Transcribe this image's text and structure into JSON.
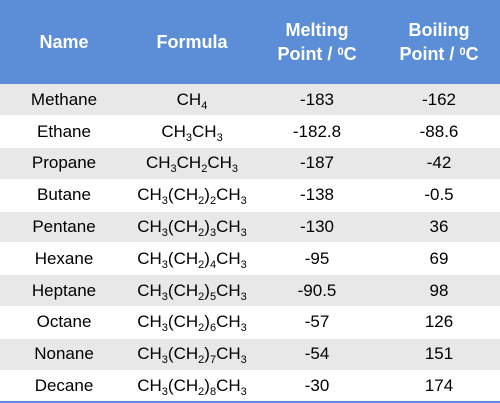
{
  "header": {
    "name": "Name",
    "formula": "Formula",
    "melting_line1": "Melting",
    "melting_line2_pre": "Point / ",
    "melting_sup": "0",
    "melting_line2_post": "C",
    "boiling_line1": "Boiling",
    "boiling_line2_pre": "Point / ",
    "boiling_sup": "0",
    "boiling_line2_post": "C"
  },
  "rows": [
    {
      "name": "Methane",
      "formula": [
        [
          "CH",
          ""
        ],
        [
          "4",
          "sub"
        ]
      ],
      "melting": "-183",
      "boiling": "-162"
    },
    {
      "name": "Ethane",
      "formula": [
        [
          "CH",
          ""
        ],
        [
          "3",
          "sub"
        ],
        [
          "CH",
          ""
        ],
        [
          "3",
          "sub"
        ]
      ],
      "melting": "-182.8",
      "boiling": "-88.6"
    },
    {
      "name": "Propane",
      "formula": [
        [
          "CH",
          ""
        ],
        [
          "3",
          "sub"
        ],
        [
          "CH",
          ""
        ],
        [
          "2",
          "sub"
        ],
        [
          "CH",
          ""
        ],
        [
          "3",
          "sub"
        ]
      ],
      "melting": "-187",
      "boiling": "-42"
    },
    {
      "name": "Butane",
      "formula": [
        [
          "CH",
          ""
        ],
        [
          "3",
          "sub"
        ],
        [
          "(CH",
          ""
        ],
        [
          "2",
          "sub"
        ],
        [
          ")",
          ""
        ],
        [
          "2",
          "sub"
        ],
        [
          "CH",
          ""
        ],
        [
          "3",
          "sub"
        ]
      ],
      "melting": "-138",
      "boiling": "-0.5"
    },
    {
      "name": "Pentane",
      "formula": [
        [
          "CH",
          ""
        ],
        [
          "3",
          "sub"
        ],
        [
          "(CH",
          ""
        ],
        [
          "2",
          "sub"
        ],
        [
          ")",
          ""
        ],
        [
          "3",
          "sub"
        ],
        [
          "CH",
          ""
        ],
        [
          "3",
          "sub"
        ]
      ],
      "melting": "-130",
      "boiling": "36"
    },
    {
      "name": "Hexane",
      "formula": [
        [
          "CH",
          ""
        ],
        [
          "3",
          "sub"
        ],
        [
          "(CH",
          ""
        ],
        [
          "2",
          "sub"
        ],
        [
          ")",
          ""
        ],
        [
          "4",
          "sub"
        ],
        [
          "CH",
          ""
        ],
        [
          "3",
          "sub"
        ]
      ],
      "melting": "-95",
      "boiling": "69"
    },
    {
      "name": "Heptane",
      "formula": [
        [
          "CH",
          ""
        ],
        [
          "3",
          "sub"
        ],
        [
          "(CH",
          ""
        ],
        [
          "2",
          "sub"
        ],
        [
          ")",
          ""
        ],
        [
          "5",
          "sub"
        ],
        [
          "CH",
          ""
        ],
        [
          "3",
          "sub"
        ]
      ],
      "melting": "-90.5",
      "boiling": "98"
    },
    {
      "name": "Octane",
      "formula": [
        [
          "CH",
          ""
        ],
        [
          "3",
          "sub"
        ],
        [
          "(CH",
          ""
        ],
        [
          "2",
          "sub"
        ],
        [
          ")",
          ""
        ],
        [
          "6",
          "sub"
        ],
        [
          "CH",
          ""
        ],
        [
          "3",
          "sub"
        ]
      ],
      "melting": "-57",
      "boiling": "126"
    },
    {
      "name": "Nonane",
      "formula": [
        [
          "CH",
          ""
        ],
        [
          "3",
          "sub"
        ],
        [
          "(CH",
          ""
        ],
        [
          "2",
          "sub"
        ],
        [
          ")",
          ""
        ],
        [
          "7",
          "sub"
        ],
        [
          "CH",
          ""
        ],
        [
          "3",
          "sub"
        ]
      ],
      "melting": "-54",
      "boiling": "151"
    },
    {
      "name": "Decane",
      "formula": [
        [
          "CH",
          ""
        ],
        [
          "3",
          "sub"
        ],
        [
          "(CH",
          ""
        ],
        [
          "2",
          "sub"
        ],
        [
          ")",
          ""
        ],
        [
          "8",
          "sub"
        ],
        [
          "CH",
          ""
        ],
        [
          "3",
          "sub"
        ]
      ],
      "melting": "-30",
      "boiling": "174"
    }
  ],
  "colors": {
    "header_bg": "#5b8ed6",
    "header_text": "#ffffff",
    "stripe": "#e8e8e8",
    "row": "#ffffff"
  }
}
